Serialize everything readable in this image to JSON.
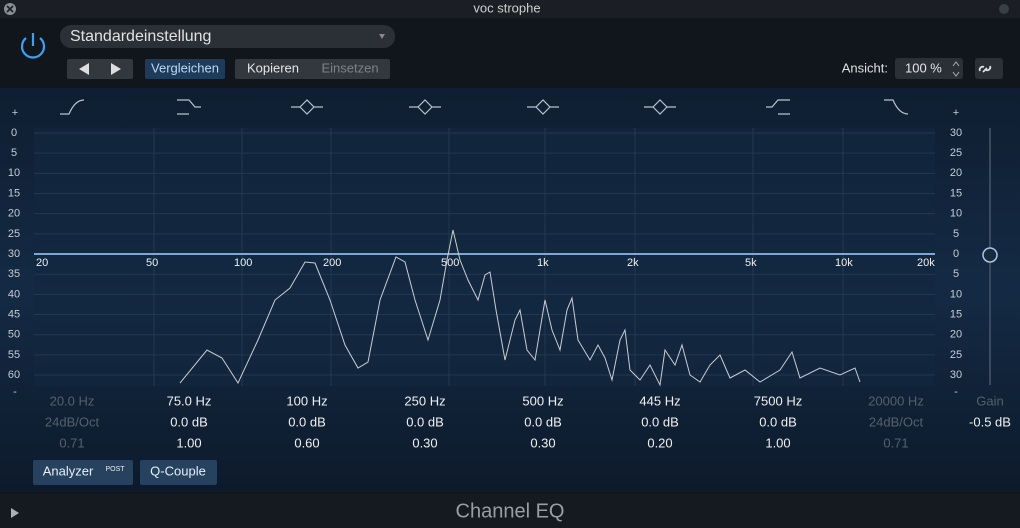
{
  "window_title": "voc strophe",
  "toolbar": {
    "preset": "Standardeinstellung",
    "compare": "Vergleichen",
    "copy": "Kopieren",
    "paste": "Einsetzen",
    "view_label": "Ansicht:",
    "view_value": "100 %"
  },
  "graph": {
    "left_scale": {
      "top": "+",
      "bottom": "-",
      "labels": [
        "0",
        "5",
        "10",
        "15",
        "20",
        "25",
        "30",
        "35",
        "40",
        "45",
        "50",
        "55",
        "60"
      ]
    },
    "right_scale": {
      "top": "+",
      "bottom": "-",
      "labels": [
        "30",
        "25",
        "20",
        "15",
        "10",
        "5",
        "0",
        "5",
        "10",
        "15",
        "20",
        "25",
        "30"
      ]
    },
    "freq_labels": [
      "20",
      "50",
      "100",
      "200",
      "500",
      "1k",
      "2k",
      "5k",
      "10k",
      "20k"
    ]
  },
  "bands": [
    {
      "freq": "20.0 Hz",
      "gain": "24dB/Oct",
      "q": "0.71"
    },
    {
      "freq": "75.0 Hz",
      "gain": "0.0 dB",
      "q": "1.00"
    },
    {
      "freq": "100 Hz",
      "gain": "0.0 dB",
      "q": "0.60"
    },
    {
      "freq": "250 Hz",
      "gain": "0.0 dB",
      "q": "0.30"
    },
    {
      "freq": "500 Hz",
      "gain": "0.0 dB",
      "q": "0.30"
    },
    {
      "freq": "445 Hz",
      "gain": "0.0 dB",
      "q": "0.20"
    },
    {
      "freq": "7500 Hz",
      "gain": "0.0 dB",
      "q": "1.00"
    },
    {
      "freq": "20000 Hz",
      "gain": "24dB/Oct",
      "q": "0.71"
    }
  ],
  "master": {
    "label": "Gain",
    "value": "-0.5 dB"
  },
  "buttons": {
    "analyzer": "Analyzer",
    "analyzer_badge": "POST",
    "q_couple": "Q-Couple"
  },
  "footer": {
    "title": "Channel EQ"
  }
}
